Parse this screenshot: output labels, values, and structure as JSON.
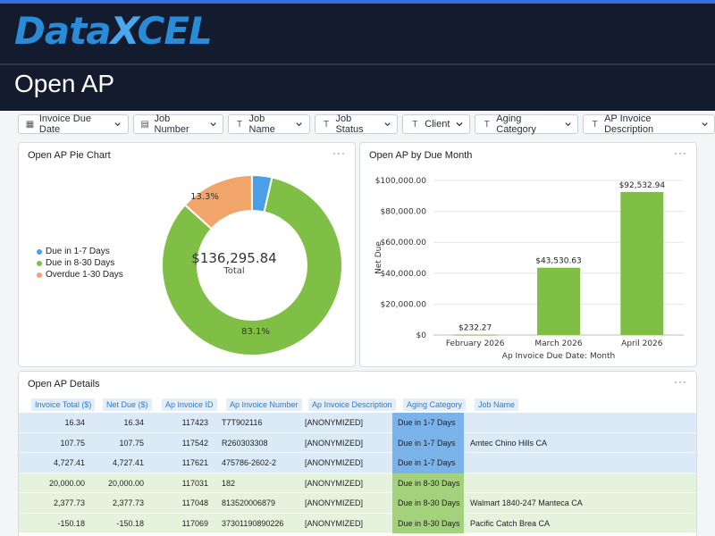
{
  "header": {
    "logo_data": "Data",
    "logo_x": "X",
    "logo_cel": "CEL",
    "title": "Open AP"
  },
  "filters": [
    {
      "label": "Invoice Due Date",
      "icon": "calendar-icon"
    },
    {
      "label": "Job Number",
      "icon": "number-icon"
    },
    {
      "label": "Job Name",
      "icon": "text-icon"
    },
    {
      "label": "Job Status",
      "icon": "text-icon"
    },
    {
      "label": "Client",
      "icon": "text-icon"
    },
    {
      "label": "Aging Category",
      "icon": "text-icon"
    },
    {
      "label": "AP Invoice Description",
      "icon": "text-icon"
    }
  ],
  "pie_card": {
    "title": "Open AP Pie Chart",
    "menu": "···",
    "center_value": "$136,295.84",
    "center_label": "Total",
    "label_small": "13.3%",
    "label_large": "83.1%"
  },
  "bar_card": {
    "title": "Open AP by Due Month",
    "menu": "···"
  },
  "chart_data": [
    {
      "type": "pie",
      "title": "Open AP Pie Chart",
      "categories": [
        "Due in 1-7 Days",
        "Due in 8-30 Days",
        "Overdue 1-30 Days"
      ],
      "values": [
        3.6,
        83.1,
        13.3
      ],
      "colors": [
        "#4b9fe8",
        "#7fbf45",
        "#f2a56a"
      ],
      "legend_position": "left"
    },
    {
      "type": "bar",
      "title": "Open AP by Due Month",
      "categories": [
        "February 2026",
        "March 2026",
        "April 2026"
      ],
      "values": [
        232.27,
        43530.63,
        92532.94
      ],
      "value_labels": [
        "$232.27",
        "$43,530.63",
        "$92,532.94"
      ],
      "xlabel": "Ap Invoice Due Date: Month",
      "ylabel": "Net Due",
      "ylim": [
        0,
        100000
      ],
      "yticks": [
        0,
        20000,
        40000,
        60000,
        80000,
        100000
      ],
      "ytick_labels": [
        "$0",
        "$20,000.00",
        "$40,000.00",
        "$60,000.00",
        "$80,000.00",
        "$100,000.00"
      ],
      "color": "#7fbf45",
      "grid": true
    }
  ],
  "table_card": {
    "title": "Open AP Details",
    "menu": "···",
    "columns": [
      "Invoice Total ($)",
      "Net Due ($)",
      "Ap Invoice ID",
      "Ap Invoice Number",
      "Ap Invoice Description",
      "Aging Category",
      "Job Name"
    ],
    "rows": [
      {
        "total": "16.34",
        "net": "16.34",
        "id": "117423",
        "number": "T7T902116",
        "desc": "[ANONYMIZED]",
        "aging": "Due in 1-7 Days",
        "job": "",
        "row_color": "#dce9f6",
        "aging_color": "#79b3ea"
      },
      {
        "total": "107.75",
        "net": "107.75",
        "id": "117542",
        "number": "R260303308",
        "desc": "[ANONYMIZED]",
        "aging": "Due in 1-7 Days",
        "job": "Amtec Chino Hills CA",
        "row_color": "#dce9f6",
        "aging_color": "#79b3ea"
      },
      {
        "total": "4,727.41",
        "net": "4,727.41",
        "id": "117621",
        "number": "475786-2602-2",
        "desc": "[ANONYMIZED]",
        "aging": "Due in 1-7 Days",
        "job": "",
        "row_color": "#dce9f6",
        "aging_color": "#79b3ea"
      },
      {
        "total": "20,000.00",
        "net": "20,000.00",
        "id": "117031",
        "number": "182",
        "desc": "[ANONYMIZED]",
        "aging": "Due in 8-30 Days",
        "job": "",
        "row_color": "#e6f3dc",
        "aging_color": "#a4d17c"
      },
      {
        "total": "2,377.73",
        "net": "2,377.73",
        "id": "117048",
        "number": "813520006879",
        "desc": "[ANONYMIZED]",
        "aging": "Due in 8-30 Days",
        "job": "Walmart 1840-247 Manteca CA",
        "row_color": "#e6f3dc",
        "aging_color": "#a4d17c"
      },
      {
        "total": "-150.18",
        "net": "-150.18",
        "id": "117069",
        "number": "37301190890226",
        "desc": "[ANONYMIZED]",
        "aging": "Due in 8-30 Days",
        "job": "Pacific Catch Brea CA",
        "row_color": "#e6f3dc",
        "aging_color": "#a4d17c"
      }
    ]
  }
}
